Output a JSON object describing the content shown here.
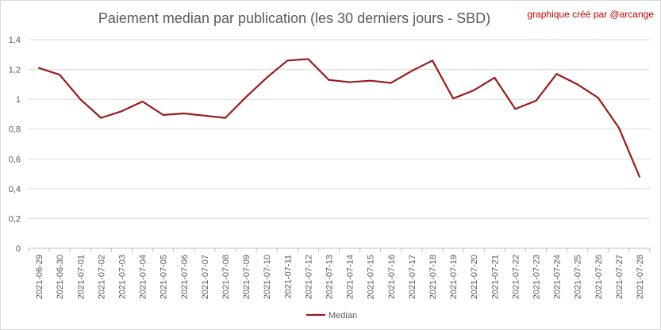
{
  "chart_data": {
    "type": "line",
    "title": "Paiement median par publication (les 30 derniers jours - SBD)",
    "credit": "graphique créé par @arcange",
    "ylim": [
      0,
      1.4
    ],
    "yticks": [
      "0",
      "0,2",
      "0,4",
      "0,6",
      "0,8",
      "1",
      "1,2",
      "1,4"
    ],
    "grid": true,
    "legend_position": "bottom",
    "categories": [
      "2021-06-29",
      "2021-06-30",
      "2021-07-01",
      "2021-07-02",
      "2021-07-03",
      "2021-07-04",
      "2021-07-05",
      "2021-07-06",
      "2021-07-07",
      "2021-07-08",
      "2021-07-09",
      "2021-07-10",
      "2021-07-11",
      "2021-07-12",
      "2021-07-13",
      "2021-07-14",
      "2021-07-15",
      "2021-07-16",
      "2021-07-17",
      "2021-07-18",
      "2021-07-19",
      "2021-07-20",
      "2021-07-21",
      "2021-07-22",
      "2021-07-23",
      "2021-07-24",
      "2021-07-25",
      "2021-07-26",
      "2021-07-27",
      "2021-07-28"
    ],
    "series": [
      {
        "name": "Median",
        "color": "#9b1b1b",
        "values": [
          1.21,
          1.165,
          1.0,
          0.875,
          0.92,
          0.985,
          0.895,
          0.905,
          0.89,
          0.875,
          1.015,
          1.145,
          1.26,
          1.27,
          1.13,
          1.115,
          1.125,
          1.11,
          1.19,
          1.26,
          1.005,
          1.06,
          1.145,
          0.935,
          0.99,
          1.17,
          1.1,
          1.01,
          0.81,
          0.48
        ]
      }
    ]
  }
}
